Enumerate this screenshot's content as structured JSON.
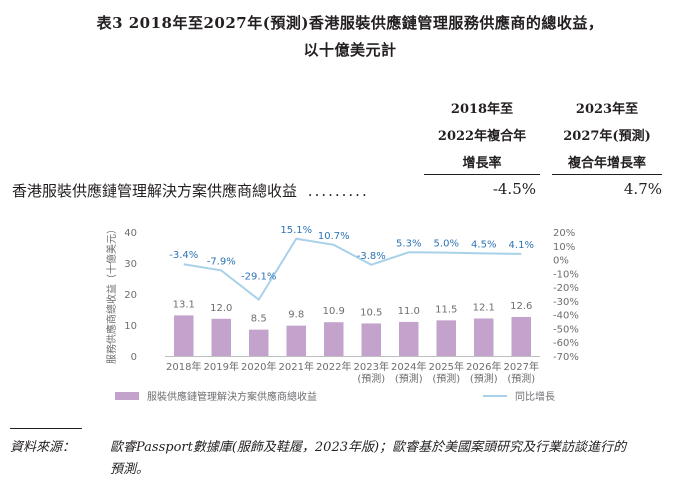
{
  "title_line1": "表3 2018年至2027年(預測)香港服裝供應鏈管理服務供應商的總收益，",
  "title_line2": "以十億美元計",
  "table": {
    "col1_header": [
      "2018年至",
      "2022年複合年",
      "增長率"
    ],
    "col2_header": [
      "2023年至",
      "2027年(預測)",
      "複合年增長率"
    ],
    "row_label": "香港服裝供應鏈管理解決方案供應商總收益",
    "dots": ".........",
    "cagr_2018_2022": "-4.5%",
    "cagr_2023_2027": "4.7%"
  },
  "chart_data": {
    "type": "bar",
    "categories": [
      [
        "2018年"
      ],
      [
        "2019年"
      ],
      [
        "2020年"
      ],
      [
        "2021年"
      ],
      [
        "2022年"
      ],
      [
        "2023年",
        "(預測)"
      ],
      [
        "2024年",
        "(預測)"
      ],
      [
        "2025年",
        "(預測)"
      ],
      [
        "2026年",
        "(預測)"
      ],
      [
        "2027年",
        "(預測)"
      ]
    ],
    "series": [
      {
        "name": "服裝供應鏈管理解決方案供應商總收益",
        "type": "bar",
        "axis": "left",
        "values": [
          13.1,
          12.0,
          8.5,
          9.8,
          10.9,
          10.5,
          11.0,
          11.5,
          12.1,
          12.6
        ],
        "labels": [
          "13.1",
          "12.0",
          "8.5",
          "9.8",
          "10.9",
          "10.5",
          "11.0",
          "11.5",
          "12.1",
          "12.6"
        ]
      },
      {
        "name": "同比增長",
        "type": "line",
        "axis": "right",
        "values": [
          -3.4,
          -7.9,
          -29.1,
          15.1,
          10.7,
          -3.8,
          5.3,
          5.0,
          4.5,
          4.1
        ],
        "labels": [
          "-3.4%",
          "-7.9%",
          "-29.1%",
          "15.1%",
          "10.7%",
          "-3.8%",
          "5.3%",
          "5.0%",
          "4.5%",
          "4.1%"
        ]
      }
    ],
    "ylabel": "服務供應商總收益（十億美元）",
    "ylim": [
      0,
      40
    ],
    "yticks": [
      0,
      10,
      20,
      30,
      40
    ],
    "y2lim": [
      -70,
      20
    ],
    "y2ticks": [
      "20%",
      "10%",
      "0%",
      "-10%",
      "-20%",
      "-30%",
      "-40%",
      "-50%",
      "-60%",
      "-70%"
    ],
    "grid": false,
    "legend_position": "bottom",
    "colors": {
      "bar": "#c3a3cc",
      "line": "#a9d1ea",
      "bar_label": "#6d6e71",
      "line_label": "#2e75b6",
      "axis_text": "#6d6e71"
    }
  },
  "source": {
    "label": "資料來源：",
    "text_line1": "歐睿Passport數據庫(服飾及鞋履，2023年版)；歐睿基於美國案頭研究及行業訪談進行的",
    "text_line2": "預測。"
  }
}
